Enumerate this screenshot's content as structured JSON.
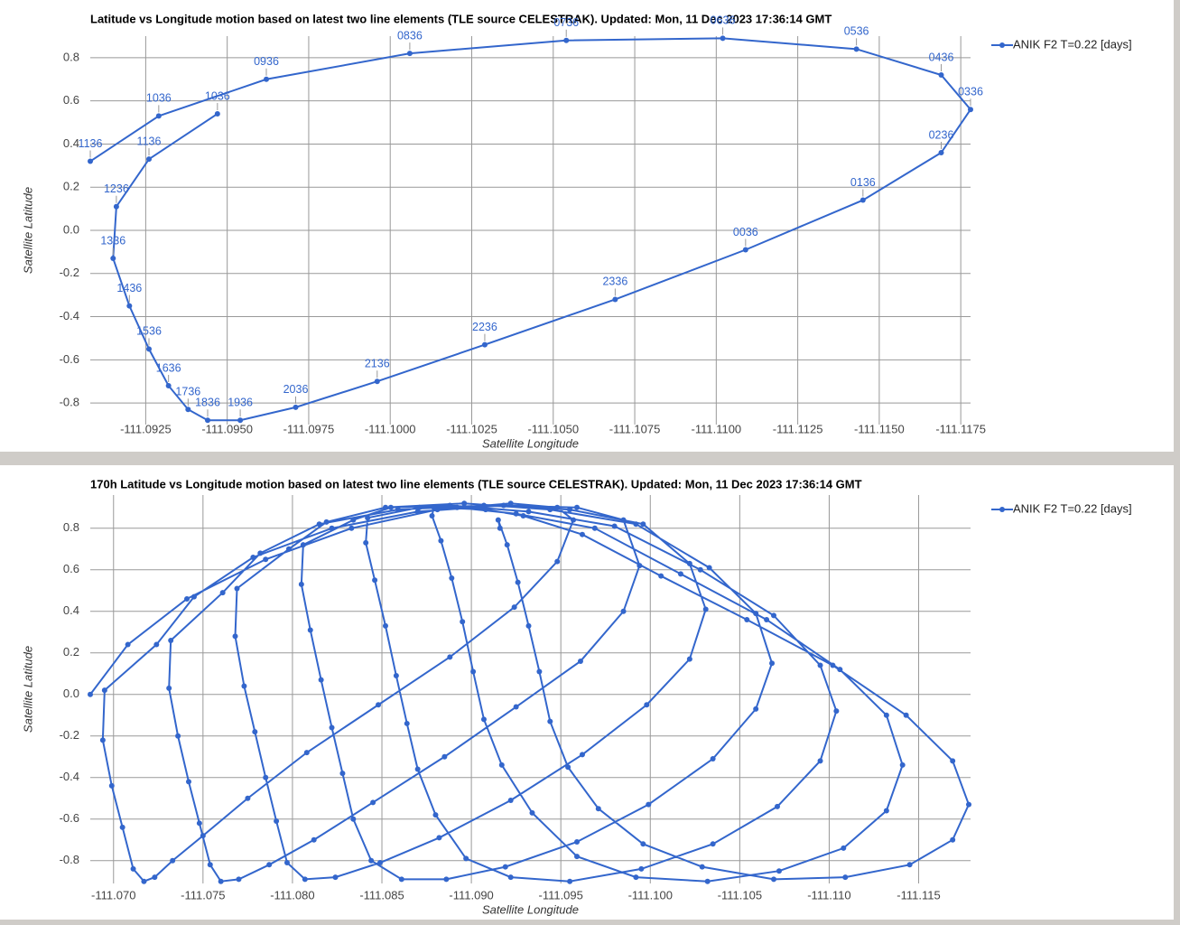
{
  "chart_data": [
    {
      "type": "line",
      "title": "Latitude vs Longitude motion based on latest two line elements (TLE source CELESTRAK). Updated: Mon, 11 Dec 2023 17:36:14 GMT",
      "x_label": "Satellite Longitude",
      "y_label": "Satellite Latitude",
      "x": [
        -111.0908,
        -111.0929,
        -111.0962,
        -111.1006,
        -111.1054,
        -111.1102,
        -111.1143,
        -111.1169,
        -111.1178,
        -111.1169,
        -111.1145,
        -111.1109,
        -111.1069,
        -111.1029,
        -111.0996,
        -111.0971,
        -111.0954,
        -111.0944,
        -111.0938,
        -111.0932,
        -111.0926,
        -111.092,
        -111.0915,
        -111.0916,
        -111.0926,
        -111.0947
      ],
      "series": [
        {
          "name": "ANIK F2 T=0.22 [days]",
          "color": "#3366cc",
          "values": [
            0.32,
            0.53,
            0.7,
            0.82,
            0.88,
            0.89,
            0.84,
            0.72,
            0.56,
            0.36,
            0.14,
            -0.09,
            -0.32,
            -0.53,
            -0.7,
            -0.82,
            -0.88,
            -0.88,
            -0.83,
            -0.72,
            -0.55,
            -0.35,
            -0.13,
            0.11,
            0.33,
            0.54
          ],
          "point_labels": [
            "1136",
            "1036",
            "0936",
            "0836",
            "0736",
            "0636",
            "0536",
            "0436",
            "0336",
            "0236",
            "0136",
            "0036",
            "2336",
            "2236",
            "2136",
            "2036",
            "1936",
            "1836",
            "1736",
            "1636",
            "1536",
            "1436",
            "1336",
            "1236",
            "1136",
            "1036"
          ]
        }
      ],
      "xlim": [
        -111.0908,
        -111.1178
      ],
      "xticks": [
        -111.0925,
        {
          "value": -111.095,
          "label": "-111.0950"
        },
        -111.0975,
        {
          "value": -111.1,
          "label": "-111.1000"
        },
        -111.1025,
        {
          "value": -111.105,
          "label": "-111.1050"
        },
        -111.1075,
        {
          "value": -111.11,
          "label": "-111.1100"
        },
        -111.1125,
        {
          "value": -111.115,
          "label": "-111.1150"
        },
        -111.1175
      ],
      "ylim": [
        -0.9,
        0.9
      ],
      "yticks": [
        -0.8,
        -0.6,
        -0.4,
        -0.2,
        {
          "value": 0,
          "label": "0.0"
        },
        0.2,
        0.4,
        0.6,
        0.8
      ],
      "grid": true,
      "legend": "right"
    },
    {
      "type": "line",
      "title": "170h Latitude vs Longitude motion based on latest two line elements (TLE source CELESTRAK). Updated: Mon, 11 Dec 2023 17:36:14 GMT",
      "x_label": "Satellite Longitude",
      "y_label": "Satellite Latitude",
      "x": [
        -111.0687,
        -111.0708,
        -111.0741,
        -111.0785,
        -111.0833,
        -111.0881,
        -111.0922,
        -111.0948,
        -111.0957,
        -111.0948,
        -111.0924,
        -111.0888,
        -111.0848,
        -111.0808,
        -111.0775,
        -111.075,
        -111.0733,
        -111.0723,
        -111.0717,
        -111.0711,
        -111.0705,
        -111.0699,
        -111.0694,
        -111.0695,
        -111.0724,
        -111.0745,
        -111.0778,
        -111.0822,
        -111.087,
        -111.0918,
        -111.0959,
        -111.0985,
        -111.0994,
        -111.0985,
        -111.0961,
        -111.0925,
        -111.0885,
        -111.0845,
        -111.0812,
        -111.0787,
        -111.077,
        -111.076,
        -111.0754,
        -111.0748,
        -111.0742,
        -111.0736,
        -111.0731,
        -111.0732,
        -111.0761,
        -111.0782,
        -111.0815,
        -111.0859,
        -111.0907,
        -111.0955,
        -111.0996,
        -111.1022,
        -111.1031,
        -111.1022,
        -111.0998,
        -111.0962,
        -111.0922,
        -111.0882,
        -111.0849,
        -111.0824,
        -111.0807,
        -111.0797,
        -111.0791,
        -111.0785,
        -111.0779,
        -111.0773,
        -111.0768,
        -111.0769,
        -111.0798,
        -111.0819,
        -111.0852,
        -111.0896,
        -111.0944,
        -111.0992,
        -111.1033,
        -111.1059,
        -111.1068,
        -111.1059,
        -111.1035,
        -111.0999,
        -111.0959,
        -111.0919,
        -111.0886,
        -111.0861,
        -111.0844,
        -111.0834,
        -111.0828,
        -111.0822,
        -111.0816,
        -111.081,
        -111.0805,
        -111.0806,
        -111.0834,
        -111.0855,
        -111.0888,
        -111.0932,
        -111.098,
        -111.1028,
        -111.1069,
        -111.1095,
        -111.1104,
        -111.1095,
        -111.1071,
        -111.1035,
        -111.0995,
        -111.0955,
        -111.0922,
        -111.0897,
        -111.088,
        -111.087,
        -111.0864,
        -111.0858,
        -111.0852,
        -111.0846,
        -111.0841,
        -111.0842,
        -111.0871,
        -111.0892,
        -111.0925,
        -111.0969,
        -111.1017,
        -111.1065,
        -111.1106,
        -111.1132,
        -111.1141,
        -111.1132,
        -111.1108,
        -111.1072,
        -111.1032,
        -111.0992,
        -111.0959,
        -111.0934,
        -111.0917,
        -111.0907,
        -111.0901,
        -111.0895,
        -111.0889,
        -111.0883,
        -111.0878,
        -111.0879,
        -111.0908,
        -111.0929,
        -111.0962,
        -111.1006,
        -111.1054,
        -111.1102,
        -111.1143,
        -111.1169,
        -111.1178,
        -111.1169,
        -111.1145,
        -111.1109,
        -111.1069,
        -111.1029,
        -111.0996,
        -111.0971,
        -111.0954,
        -111.0944,
        -111.0938,
        -111.0932,
        -111.0926,
        -111.092,
        -111.0915,
        -111.0916
      ],
      "series": [
        {
          "name": "ANIK F2 T=0.22 [days]",
          "color": "#3366cc",
          "values": [
            0.0,
            0.24,
            0.46,
            0.65,
            0.8,
            0.89,
            0.92,
            0.9,
            0.84,
            0.64,
            0.42,
            0.18,
            -0.05,
            -0.28,
            -0.5,
            -0.68,
            -0.8,
            -0.88,
            -0.9,
            -0.84,
            -0.64,
            -0.44,
            -0.22,
            0.02,
            0.24,
            0.47,
            0.66,
            0.8,
            0.88,
            0.91,
            0.9,
            0.84,
            0.62,
            0.4,
            0.16,
            -0.06,
            -0.3,
            -0.52,
            -0.7,
            -0.82,
            -0.89,
            -0.9,
            -0.82,
            -0.62,
            -0.42,
            -0.2,
            0.03,
            0.26,
            0.49,
            0.68,
            0.82,
            0.89,
            0.91,
            0.89,
            0.82,
            0.63,
            0.41,
            0.17,
            -0.05,
            -0.29,
            -0.51,
            -0.69,
            -0.81,
            -0.88,
            -0.89,
            -0.81,
            -0.61,
            -0.4,
            -0.18,
            0.04,
            0.28,
            0.51,
            0.7,
            0.83,
            0.9,
            0.92,
            0.89,
            0.82,
            0.61,
            0.39,
            0.15,
            -0.07,
            -0.31,
            -0.53,
            -0.71,
            -0.83,
            -0.89,
            -0.89,
            -0.8,
            -0.6,
            -0.38,
            -0.16,
            0.07,
            0.31,
            0.53,
            0.72,
            0.84,
            0.9,
            0.91,
            0.88,
            0.81,
            0.6,
            0.38,
            0.14,
            -0.08,
            -0.32,
            -0.54,
            -0.72,
            -0.84,
            -0.9,
            -0.88,
            -0.79,
            -0.58,
            -0.36,
            -0.14,
            0.09,
            0.33,
            0.55,
            0.73,
            0.85,
            0.9,
            0.9,
            0.87,
            0.8,
            0.58,
            0.36,
            0.12,
            -0.1,
            -0.34,
            -0.56,
            -0.74,
            -0.85,
            -0.9,
            -0.88,
            -0.78,
            -0.57,
            -0.34,
            -0.12,
            0.11,
            0.35,
            0.56,
            0.74,
            0.86,
            0.9,
            0.89,
            0.86,
            0.77,
            0.57,
            0.36,
            0.14,
            -0.1,
            -0.32,
            -0.53,
            -0.7,
            -0.82,
            -0.88,
            -0.89,
            -0.83,
            -0.72,
            -0.55,
            -0.35,
            -0.13,
            0.11,
            0.33,
            0.54,
            0.72,
            0.84,
            0.8
          ]
        }
      ],
      "xlim": [
        -111.0687,
        -111.1179
      ],
      "xticks": [
        {
          "value": -111.07,
          "label": "-111.070"
        },
        -111.075,
        {
          "value": -111.08,
          "label": "-111.080"
        },
        -111.085,
        {
          "value": -111.09,
          "label": "-111.090"
        },
        -111.095,
        {
          "value": -111.1,
          "label": "-111.100"
        },
        -111.105,
        {
          "value": -111.11,
          "label": "-111.110"
        },
        -111.115
      ],
      "ylim": [
        -0.91,
        0.96
      ],
      "yticks": [
        -0.8,
        -0.6,
        -0.4,
        -0.2,
        {
          "value": 0,
          "label": "0.0"
        },
        0.2,
        0.4,
        0.6,
        0.8
      ],
      "grid": true,
      "legend": "right"
    }
  ]
}
